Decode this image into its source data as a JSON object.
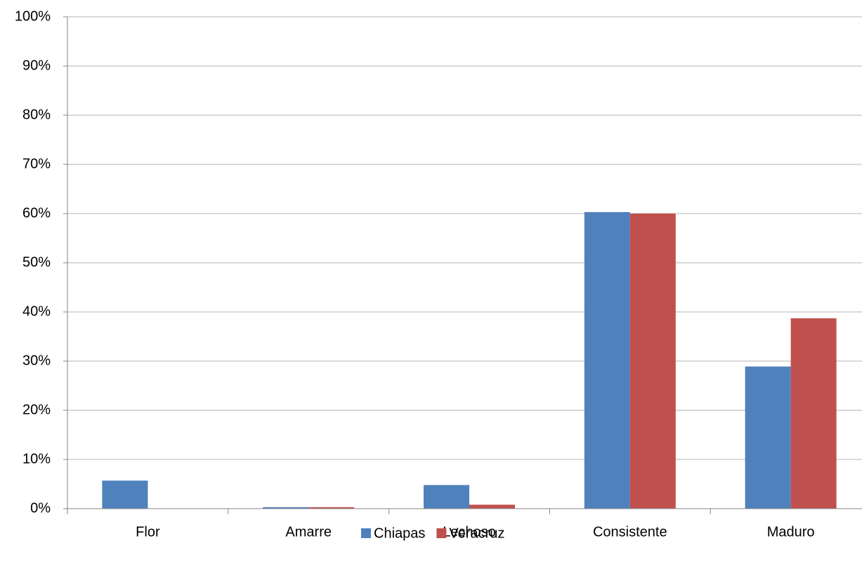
{
  "chart_data": {
    "type": "bar",
    "categories": [
      "Flor",
      "Amarre",
      "Lechoso",
      "Consistente",
      "Maduro"
    ],
    "series": [
      {
        "name": "Chiapas",
        "color": "#4f81bd",
        "values": [
          5.7,
          0.3,
          4.8,
          60.3,
          28.9
        ]
      },
      {
        "name": "Veracruz",
        "color": "#c0504d",
        "values": [
          0,
          0.3,
          0.8,
          60.0,
          38.7
        ]
      }
    ],
    "ylim": [
      0,
      100
    ],
    "yticks": [
      {
        "value": 0,
        "label": "0%"
      },
      {
        "value": 10,
        "label": "10%"
      },
      {
        "value": 20,
        "label": "20%"
      },
      {
        "value": 30,
        "label": "30%"
      },
      {
        "value": 40,
        "label": "40%"
      },
      {
        "value": 50,
        "label": "50%"
      },
      {
        "value": 60,
        "label": "60%"
      },
      {
        "value": 70,
        "label": "70%"
      },
      {
        "value": 80,
        "label": "80%"
      },
      {
        "value": 90,
        "label": "90%"
      },
      {
        "value": 100,
        "label": "100%"
      }
    ],
    "grid": true,
    "legend": "bottom"
  }
}
